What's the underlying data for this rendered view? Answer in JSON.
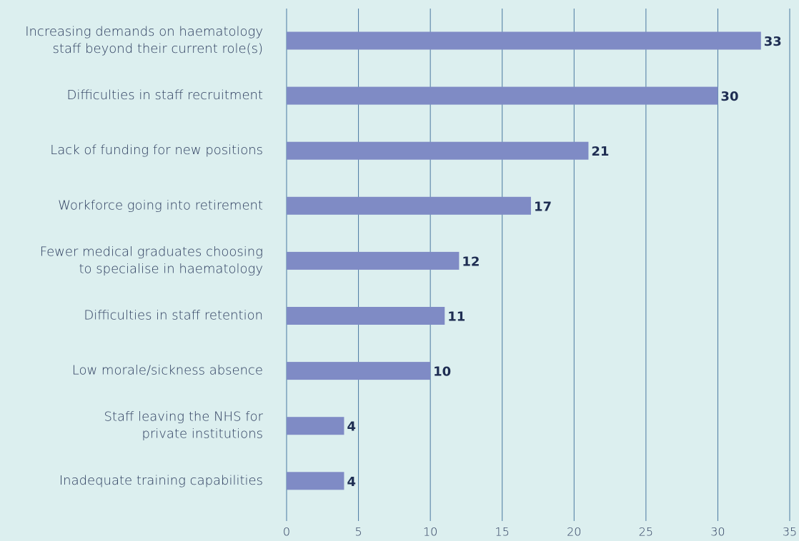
{
  "chart_data": {
    "type": "barh",
    "categories": [
      "Increasing demands on haematology\nstaff beyond their current role(s)",
      "Difficulties in staff recruitment",
      "Lack of funding for new positions",
      "Workforce going into retirement",
      "Fewer medical graduates choosing\nto specialise in haematology",
      "Difficulties in staff retention",
      "Low morale/sickness absence",
      "Staff leaving the NHS for\nprivate institutions",
      "Inadequate training capabilities"
    ],
    "values": [
      33,
      30,
      21,
      17,
      12,
      11,
      10,
      4,
      4
    ],
    "color": "#7f8bc5",
    "xlim": [
      0,
      35
    ],
    "xticks": [
      0,
      5,
      10,
      15,
      20,
      25,
      30,
      35
    ],
    "grid": true
  }
}
